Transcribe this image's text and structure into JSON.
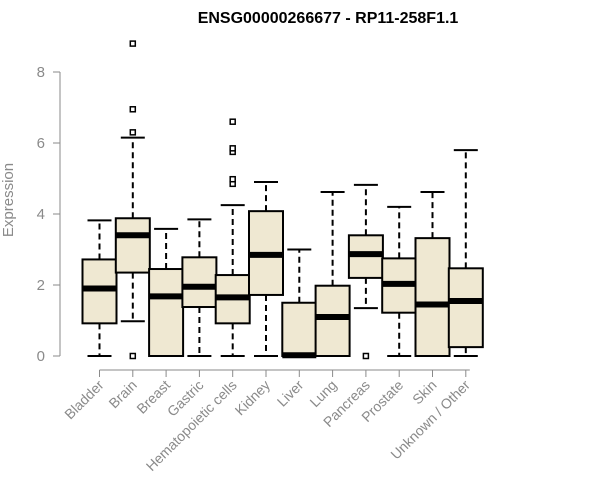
{
  "chart_data": {
    "type": "boxplot",
    "title": "ENSG00000266677 - RP11-258F1.1",
    "ylabel": "Expression",
    "xlabel": "",
    "ylim": [
      0,
      9
    ],
    "yticks": [
      0,
      2,
      4,
      6,
      8
    ],
    "grid": false,
    "colors": {
      "box_fill": "#efe8d2",
      "stroke": "#000000",
      "axis": "#8a8a8a"
    },
    "categories": [
      "Bladder",
      "Brain",
      "Breast",
      "Gastric",
      "Hematopoietic cells",
      "Kidney",
      "Liver",
      "Lung",
      "Pancreas",
      "Prostate",
      "Skin",
      "Unknown / Other"
    ],
    "boxes": [
      {
        "min": 0.0,
        "q1": 0.92,
        "median": 1.9,
        "q3": 2.72,
        "max": 3.82,
        "outliers": []
      },
      {
        "min": 0.98,
        "q1": 2.35,
        "median": 3.4,
        "q3": 3.88,
        "max": 6.15,
        "outliers": [
          0.0,
          6.3,
          6.95,
          8.8
        ]
      },
      {
        "min": 0.0,
        "q1": 0.0,
        "median": 1.68,
        "q3": 2.45,
        "max": 3.58,
        "outliers": []
      },
      {
        "min": 0.0,
        "q1": 1.38,
        "median": 1.95,
        "q3": 2.78,
        "max": 3.85,
        "outliers": []
      },
      {
        "min": 0.0,
        "q1": 0.92,
        "median": 1.65,
        "q3": 2.28,
        "max": 4.25,
        "outliers": [
          4.85,
          4.98,
          5.75,
          5.85,
          6.6
        ]
      },
      {
        "min": 0.0,
        "q1": 1.72,
        "median": 2.85,
        "q3": 4.08,
        "max": 4.9,
        "outliers": []
      },
      {
        "min": 0.0,
        "q1": 0.0,
        "median": 0.02,
        "q3": 1.5,
        "max": 3.0,
        "outliers": []
      },
      {
        "min": 0.0,
        "q1": 0.0,
        "median": 1.1,
        "q3": 1.98,
        "max": 4.62,
        "outliers": []
      },
      {
        "min": 1.35,
        "q1": 2.2,
        "median": 2.87,
        "q3": 3.4,
        "max": 4.82,
        "outliers": [
          0.0
        ]
      },
      {
        "min": 0.0,
        "q1": 1.22,
        "median": 2.03,
        "q3": 2.75,
        "max": 4.2,
        "outliers": []
      },
      {
        "min": 0.0,
        "q1": 0.0,
        "median": 1.45,
        "q3": 3.32,
        "max": 4.62,
        "outliers": []
      },
      {
        "min": 0.0,
        "q1": 0.25,
        "median": 1.55,
        "q3": 2.47,
        "max": 5.8,
        "outliers": []
      }
    ]
  }
}
